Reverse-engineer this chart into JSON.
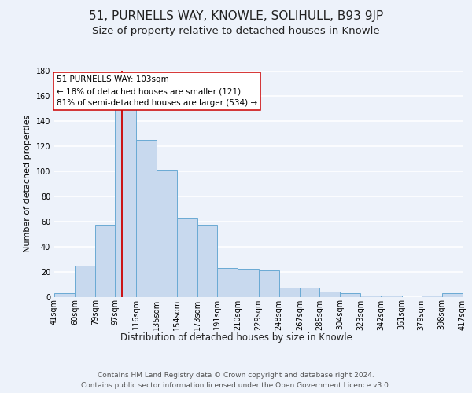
{
  "title": "51, PURNELLS WAY, KNOWLE, SOLIHULL, B93 9JP",
  "subtitle": "Size of property relative to detached houses in Knowle",
  "xlabel": "Distribution of detached houses by size in Knowle",
  "ylabel": "Number of detached properties",
  "bar_heights": [
    3,
    25,
    57,
    150,
    125,
    101,
    63,
    57,
    23,
    22,
    21,
    7,
    7,
    4,
    3,
    1,
    1,
    0,
    1,
    3
  ],
  "bin_edges": [
    41,
    60,
    79,
    97,
    116,
    135,
    154,
    173,
    191,
    210,
    229,
    248,
    267,
    285,
    304,
    323,
    342,
    361,
    379,
    398,
    417
  ],
  "bar_color": "#c8d9ee",
  "bar_edgecolor": "#6aaad4",
  "vline_x": 103,
  "vline_color": "#cc0000",
  "annotation_line1": "51 PURNELLS WAY: 103sqm",
  "annotation_line2": "← 18% of detached houses are smaller (121)",
  "annotation_line3": "81% of semi-detached houses are larger (534) →",
  "annotation_box_facecolor": "#ffffff",
  "annotation_box_edgecolor": "#cc0000",
  "ylim": [
    0,
    180
  ],
  "yticks": [
    0,
    20,
    40,
    60,
    80,
    100,
    120,
    140,
    160,
    180
  ],
  "bin_labels": [
    "41sqm",
    "60sqm",
    "79sqm",
    "97sqm",
    "116sqm",
    "135sqm",
    "154sqm",
    "173sqm",
    "191sqm",
    "210sqm",
    "229sqm",
    "248sqm",
    "267sqm",
    "285sqm",
    "304sqm",
    "323sqm",
    "342sqm",
    "361sqm",
    "379sqm",
    "398sqm",
    "417sqm"
  ],
  "footer_line1": "Contains HM Land Registry data © Crown copyright and database right 2024.",
  "footer_line2": "Contains public sector information licensed under the Open Government Licence v3.0.",
  "background_color": "#edf2fa",
  "grid_color": "#ffffff",
  "title_fontsize": 11,
  "subtitle_fontsize": 9.5,
  "axis_label_fontsize": 8.5,
  "ylabel_fontsize": 8,
  "tick_fontsize": 7,
  "annotation_fontsize": 7.5,
  "footer_fontsize": 6.5
}
